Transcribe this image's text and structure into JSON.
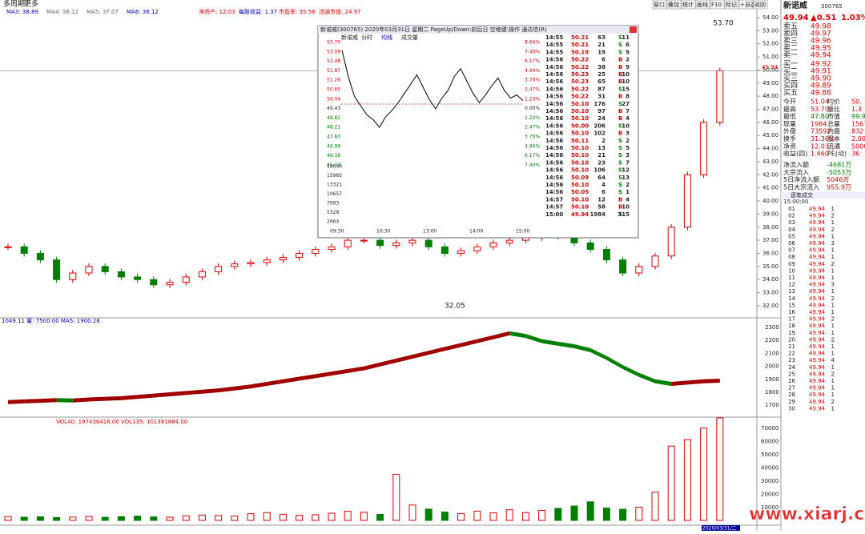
{
  "header": {
    "title": "多周期",
    "menu": "更多",
    "buttons": [
      "窗口",
      "叠加",
      "统计",
      "画线",
      "F10",
      "标记",
      "+自选",
      "返回"
    ],
    "indicators": [
      "MA3: 38.89",
      "MA4: 38.12",
      "MA5: 37.07",
      "MA6: 36.12",
      "净资产: 12.03",
      "每股收益: 1.37",
      "市盈率: 35.56",
      "流通市值: 24.97"
    ]
  },
  "main_chart": {
    "price_axis": [
      "54.00",
      "53.00",
      "52.00",
      "51.00",
      "50.00",
      "49.00",
      "48.00",
      "47.00",
      "46.00",
      "45.00",
      "44.00",
      "43.00",
      "42.00",
      "41.00",
      "40.00",
      "39.00",
      "38.00",
      "37.00",
      "36.00",
      "35.00",
      "34.00",
      "33.00",
      "32.00"
    ],
    "high_label": "53.70",
    "low_label": "32.05",
    "last_label": "49.94",
    "closes": [
      36.5,
      36,
      35.5,
      34,
      34.5,
      35,
      34.6,
      34.2,
      34,
      33.6,
      33.8,
      34.2,
      34.6,
      35,
      35.2,
      35.3,
      35.5,
      35.7,
      36,
      36.3,
      36.5,
      37,
      37,
      36.6,
      36.8,
      37,
      36.5,
      36,
      36.2,
      36.5,
      36.8,
      37,
      37.2,
      37.5,
      37.3,
      36.8,
      36.3,
      35.5,
      34.5,
      35,
      35.8,
      38,
      42,
      46,
      49.94
    ]
  },
  "indicator_chart": {
    "label": "1049.11 量: 7500.00 MA5: 1900.28",
    "axis": [
      "2300",
      "2200",
      "2100",
      "2000",
      "1900",
      "1800",
      "1700"
    ],
    "values": [
      1740,
      1745,
      1750,
      1755,
      1752,
      1760,
      1765,
      1770,
      1780,
      1790,
      1800,
      1810,
      1820,
      1830,
      1845,
      1860,
      1880,
      1900,
      1920,
      1940,
      1960,
      1980,
      2000,
      2030,
      2060,
      2090,
      2120,
      2150,
      2180,
      2210,
      2240,
      2270,
      2250,
      2210,
      2190,
      2170,
      2140,
      2080,
      2010,
      1950,
      1900,
      1880,
      1890,
      1900,
      1905
    ]
  },
  "volume_chart": {
    "label": "VOL40: 197436416.00 VOL135: 101381884.00",
    "axis": [
      "70000",
      "60000",
      "50000",
      "40000",
      "30000",
      "20000",
      "10000"
    ],
    "values": [
      3000,
      2500,
      2800,
      2200,
      2600,
      3100,
      2400,
      2900,
      3300,
      2700,
      2500,
      3600,
      4200,
      3800,
      3400,
      5200,
      6100,
      4800,
      3900,
      4400,
      5600,
      7100,
      6300,
      4700,
      36000,
      12000,
      8800,
      6500,
      5400,
      7200,
      5900,
      8300,
      6100,
      7800,
      9400,
      11200,
      14500,
      9600,
      8700,
      10300,
      22000,
      58000,
      63000,
      72000,
      80000
    ],
    "date": "2020/03/31/二"
  },
  "popup": {
    "title": "新诺威(300765) 2020年03月31日 星期二 PageUp/Down:前后日 空格键:操作 通达信(R)",
    "tabs": [
      "新诺威",
      "分时",
      "均线",
      "成交量"
    ],
    "price_axis": [
      "53.70",
      "53.09",
      "52.48",
      "51.87",
      "51.26",
      "50.65",
      "50.04",
      "49.43",
      "48.82",
      "48.21",
      "47.60",
      "46.99",
      "46.38",
      "45.77"
    ],
    "pct_axis": [
      "8.64%",
      "7.40%",
      "6.17%",
      "4.94%",
      "3.70%",
      "2.47%",
      "1.23%",
      "0.00%",
      "1.23%",
      "2.47%",
      "3.70%",
      "4.94%",
      "6.17%",
      "7.40%"
    ],
    "vol_axis": [
      "18649",
      "15985",
      "13321",
      "10657",
      "7993",
      "5328",
      "2664"
    ],
    "time_axis": [
      "09:30",
      "10:30",
      "13:00",
      "14:00",
      "15:00"
    ],
    "prices": [
      53.2,
      51.5,
      50.2,
      49.6,
      49.0,
      48.7,
      48.2,
      48.9,
      49.3,
      49.8,
      50.4,
      51.0,
      51.6,
      50.8,
      50.0,
      49.4,
      50.1,
      50.6,
      51.5,
      52.0,
      51.2,
      50.4,
      49.8,
      50.3,
      50.9,
      51.4,
      50.6,
      50.1,
      50.3,
      49.94
    ],
    "trades": [
      [
        "14:55",
        "50.21",
        "63",
        "S",
        "11"
      ],
      [
        "14:55",
        "50.21",
        "21",
        "S",
        "6"
      ],
      [
        "14:55",
        "50.19",
        "19",
        "S",
        "9"
      ],
      [
        "14:56",
        "50.22",
        "6",
        "B",
        "2"
      ],
      [
        "14:56",
        "50.22",
        "38",
        "B",
        "9"
      ],
      [
        "14:56",
        "50.23",
        "25",
        "B",
        "10"
      ],
      [
        "14:56",
        "50.23",
        "65",
        "B",
        "10"
      ],
      [
        "14:56",
        "50.22",
        "87",
        "S",
        "15"
      ],
      [
        "14:56",
        "50.22",
        "31",
        "B",
        "8"
      ],
      [
        "14:56",
        "50.10",
        "176",
        "S",
        "27"
      ],
      [
        "14:56",
        "50.10",
        "97",
        "B",
        "7"
      ],
      [
        "14:56",
        "50.10",
        "24",
        "B",
        "4"
      ],
      [
        "14:56",
        "50.00",
        "206",
        "S",
        "10"
      ],
      [
        "14:56",
        "50.10",
        "102",
        "B",
        "3"
      ],
      [
        "14:56",
        "50.11",
        "2",
        "S",
        "2"
      ],
      [
        "14:56",
        "50.10",
        "13",
        "S",
        "5"
      ],
      [
        "14:56",
        "50.10",
        "21",
        "S",
        "3"
      ],
      [
        "14:56",
        "50.10",
        "23",
        "S",
        "7"
      ],
      [
        "14:56",
        "50.10",
        "106",
        "S",
        "12"
      ],
      [
        "14:56",
        "50.09",
        "64",
        "S",
        "13"
      ],
      [
        "14:56",
        "50.10",
        "4",
        "S",
        "2"
      ],
      [
        "14:56",
        "50.05",
        "6",
        "S",
        "1"
      ],
      [
        "14:57",
        "50.10",
        "12",
        "B",
        "4"
      ],
      [
        "14:57",
        "50.10",
        "58",
        "B",
        "10"
      ],
      [
        "15:00",
        "49.94",
        "1984",
        "S",
        "315"
      ]
    ]
  },
  "quote": {
    "name": "新诺威",
    "code": "300765",
    "price": "49.94",
    "change": "▲0.51",
    "pct": "1.03%",
    "asks": [
      [
        "卖五",
        "49.98"
      ],
      [
        "卖四",
        "49.97"
      ],
      [
        "卖三",
        "49.96"
      ],
      [
        "卖二",
        "49.95"
      ],
      [
        "卖一",
        "49.94"
      ]
    ],
    "bids": [
      [
        "买一",
        "49.92"
      ],
      [
        "买二",
        "49.91"
      ],
      [
        "买三",
        "49.90"
      ],
      [
        "买四",
        "49.89"
      ],
      [
        "买五",
        "49.88"
      ]
    ],
    "stats": [
      [
        "今开",
        "51.04",
        "均价",
        "50."
      ],
      [
        "最高",
        "53.70",
        "量比",
        "1.3"
      ],
      [
        "最低",
        "47.80",
        "市值",
        "99.9"
      ],
      [
        "现量",
        "1984",
        "总量",
        "1567"
      ],
      [
        "外盘",
        "73592",
        "内盘",
        "832"
      ],
      [
        "换手",
        "31.36%",
        "股本",
        "2.00"
      ],
      [
        "净资",
        "12.03",
        "流通",
        "5000"
      ],
      [
        "收益(四)",
        "1.460",
        "PE(动)",
        "36"
      ]
    ],
    "flows": [
      [
        "净流入额",
        "-4681万"
      ],
      [
        "大宗流入",
        "-5053万"
      ],
      [
        "5日净流入额",
        "5046万"
      ],
      [
        "5日大宗流入",
        "955.9万"
      ]
    ],
    "ticks_title": "逐笔成交",
    "ticks_time": "15:00:00",
    "ticks": [
      [
        "01",
        "49.94",
        "1"
      ],
      [
        "02",
        "49.94",
        "2"
      ],
      [
        "03",
        "49.94",
        "1"
      ],
      [
        "04",
        "49.94",
        "2"
      ],
      [
        "05",
        "49.94",
        "1"
      ],
      [
        "06",
        "49.94",
        "3"
      ],
      [
        "07",
        "49.94",
        "1"
      ],
      [
        "08",
        "49.94",
        "1"
      ],
      [
        "09",
        "49.94",
        "2"
      ],
      [
        "10",
        "49.94",
        "1"
      ],
      [
        "11",
        "49.94",
        "1"
      ],
      [
        "12",
        "49.94",
        "3"
      ],
      [
        "13",
        "49.94",
        "1"
      ],
      [
        "14",
        "49.94",
        "2"
      ],
      [
        "15",
        "49.94",
        "1"
      ],
      [
        "16",
        "49.94",
        "1"
      ],
      [
        "17",
        "49.94",
        "2"
      ],
      [
        "18",
        "49.94",
        "1"
      ],
      [
        "19",
        "49.94",
        "1"
      ],
      [
        "20",
        "49.94",
        "2"
      ],
      [
        "21",
        "49.94",
        "1"
      ],
      [
        "22",
        "49.94",
        "1"
      ],
      [
        "23",
        "49.94",
        "4"
      ],
      [
        "24",
        "49.94",
        "1"
      ],
      [
        "25",
        "49.94",
        "2"
      ],
      [
        "26",
        "49.94",
        "1"
      ],
      [
        "27",
        "49.94",
        "1"
      ],
      [
        "28",
        "49.94",
        "1"
      ],
      [
        "29",
        "49.94",
        "2"
      ],
      [
        "30",
        "49.94",
        "1"
      ]
    ]
  },
  "watermark": "www.xiarj.com"
}
